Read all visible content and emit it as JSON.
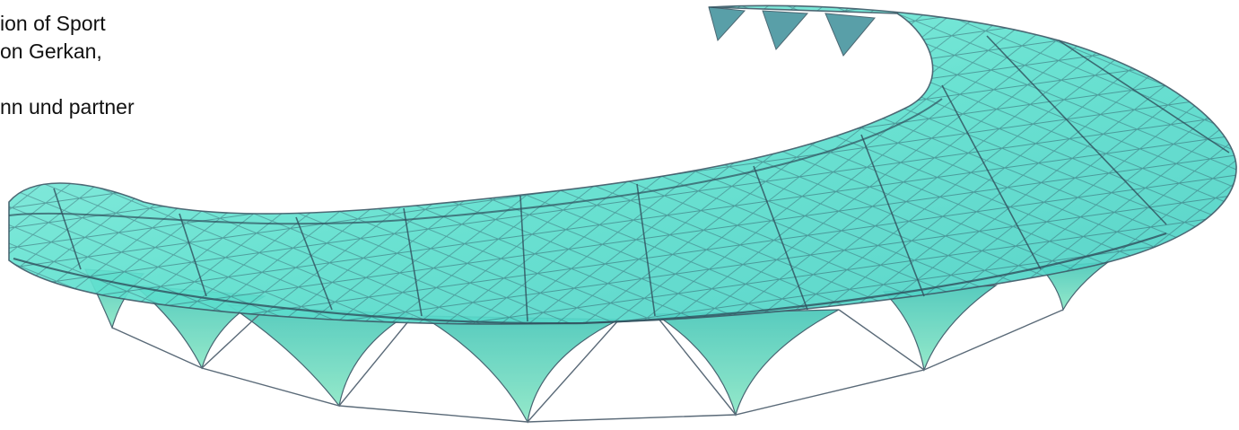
{
  "caption": {
    "lines": [
      "ion of Sport",
      "on Gerkan,",
      "",
      "nn und partner"
    ]
  },
  "image": {
    "subject": "stadium-roof-render",
    "colors": {
      "glass": "#5fe0cf",
      "glass_dark": "#3fb8b0",
      "structure": "#3e5d6a",
      "cable": "#5a6a78"
    }
  }
}
